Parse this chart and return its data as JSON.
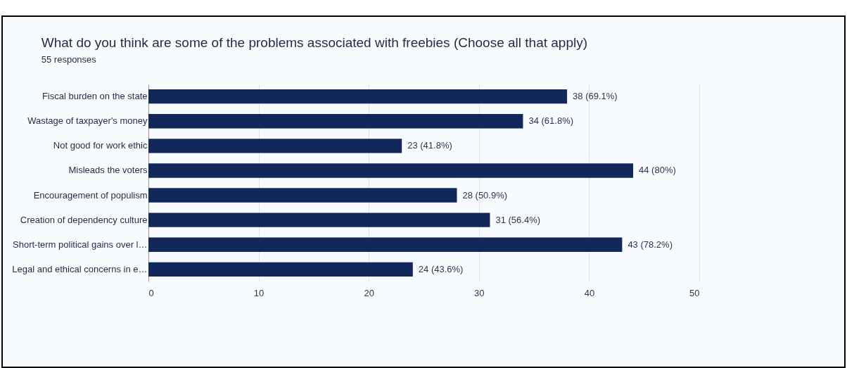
{
  "chart_data": {
    "type": "bar",
    "orientation": "horizontal",
    "title": "What do you think are some of the problems associated with freebies (Choose all that apply)",
    "subtitle": "55 responses",
    "categories": [
      "Fiscal burden on the state",
      "Wastage of taxpayer's money",
      "Not good for work ethic",
      "Misleads the voters",
      "Encouragement of populism",
      "Creation of dependency culture",
      "Short-term political gains over l…",
      "Legal and ethical concerns in e…"
    ],
    "values": [
      38,
      34,
      23,
      44,
      28,
      31,
      43,
      24
    ],
    "value_labels": [
      "38 (69.1%)",
      "34 (61.8%)",
      "23 (41.8%)",
      "44 (80%)",
      "28 (50.9%)",
      "31 (56.4%)",
      "43 (78.2%)",
      "24 (43.6%)"
    ],
    "color": "#12275a",
    "xlim": [
      0,
      50
    ],
    "xticks": [
      0,
      10,
      20,
      30,
      40,
      50
    ],
    "grid": "x"
  }
}
